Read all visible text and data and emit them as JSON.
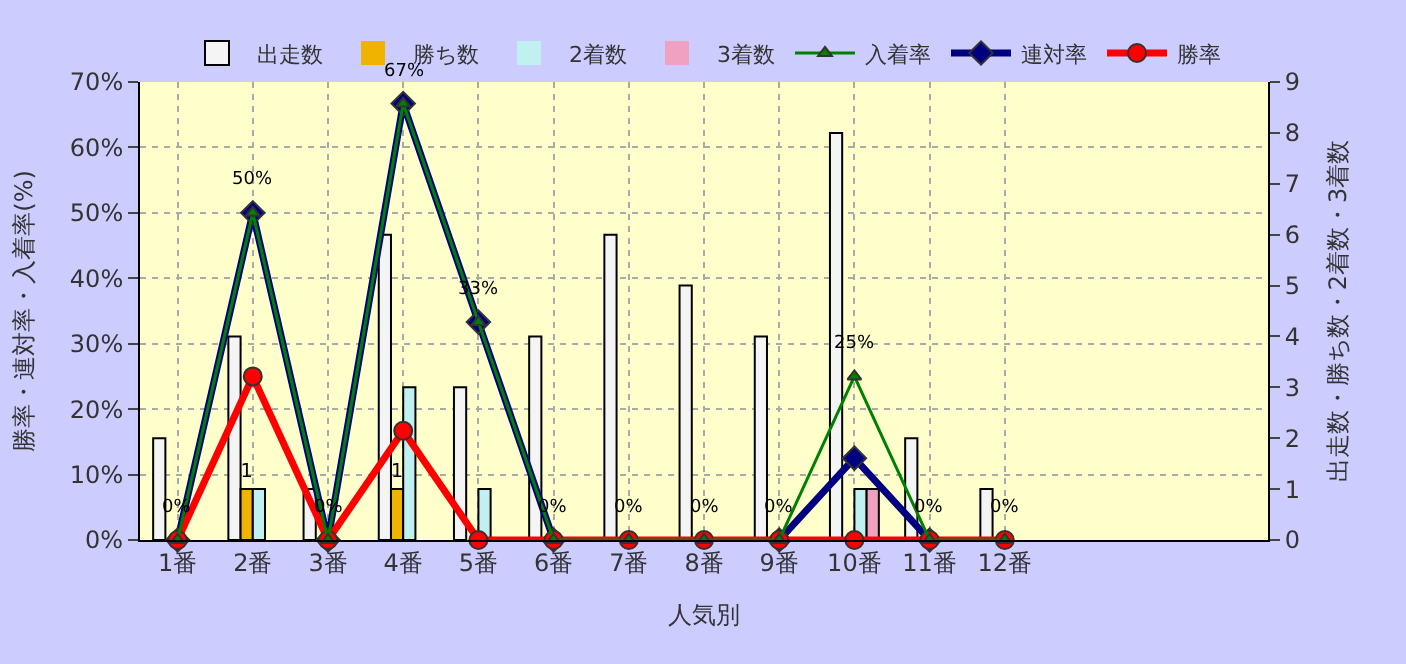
{
  "chart_data": {
    "type": "bar",
    "xlabel": "人気別",
    "ylabel": "勝率・連対率・入着率(%)",
    "y2label": "出走数・勝ち数・2着数・3着数",
    "categories": [
      "1番",
      "2番",
      "3番",
      "4番",
      "5番",
      "6番",
      "7番",
      "8番",
      "9番",
      "10番",
      "11番",
      "12番",
      null,
      null,
      null
    ],
    "series": [
      {
        "name": "出走数",
        "axis": "y2",
        "color": "#f4f4f4",
        "values": [
          2,
          4,
          1,
          6,
          3,
          4,
          6,
          5,
          4,
          8,
          2,
          1,
          null,
          null,
          null
        ]
      },
      {
        "name": "勝ち数",
        "axis": "y2",
        "color": "#f0b400",
        "values": [
          0,
          1,
          0,
          1,
          0,
          0,
          0,
          0,
          0,
          0,
          0,
          0,
          null,
          null,
          null
        ],
        "value_labels": [
          null,
          "1",
          null,
          "1",
          null,
          null,
          null,
          null,
          null,
          null,
          null,
          null,
          null,
          null,
          null
        ]
      },
      {
        "name": "2着数",
        "axis": "y2",
        "color": "#c0f0f0",
        "values": [
          0,
          1,
          0,
          3,
          1,
          0,
          0,
          0,
          0,
          1,
          0,
          0,
          null,
          null,
          null
        ]
      },
      {
        "name": "3着数",
        "axis": "y2",
        "color": "#f0a0c0",
        "values": [
          0,
          0,
          0,
          0,
          0,
          0,
          0,
          0,
          0,
          1,
          0,
          0,
          null,
          null,
          null
        ]
      },
      {
        "name": "入着率",
        "type": "line",
        "marker": "triangle",
        "color": "#008000",
        "values": [
          0,
          50,
          0,
          66.7,
          33.3,
          0,
          0,
          0,
          0,
          25,
          0,
          0,
          null,
          null,
          null
        ],
        "value_labels": [
          "0%",
          "50%",
          "0%",
          "67%",
          "33%",
          "0%",
          "0%",
          "0%",
          "0%",
          "25%",
          "0%",
          "0%",
          null,
          null,
          null
        ]
      },
      {
        "name": "連対率",
        "type": "line",
        "marker": "diamond",
        "color": "#000080",
        "values": [
          0,
          50,
          0,
          66.7,
          33.3,
          0,
          null,
          null,
          0,
          12.5,
          0,
          null,
          null,
          null,
          null
        ]
      },
      {
        "name": "勝率",
        "type": "line",
        "marker": "circle",
        "color": "#ff0000",
        "values": [
          0,
          25,
          0,
          16.7,
          0,
          0,
          0,
          0,
          0,
          0,
          0,
          0,
          null,
          null,
          null
        ]
      }
    ],
    "ylim": [
      0,
      70
    ],
    "yticks": [
      {
        "value": 0,
        "label": "0%"
      },
      {
        "value": 10,
        "label": "10%"
      },
      {
        "value": 20,
        "label": "20%"
      },
      {
        "value": 30,
        "label": "30%"
      },
      {
        "value": 40,
        "label": "40%"
      },
      {
        "value": 50,
        "label": "50%"
      },
      {
        "value": 60,
        "label": "60%"
      },
      {
        "value": 70,
        "label": "70%"
      }
    ],
    "y2lim": [
      0,
      9
    ],
    "y2ticks": [
      0,
      1,
      2,
      3,
      4,
      5,
      6,
      7,
      8,
      9
    ],
    "grid": true,
    "legend": "top"
  }
}
